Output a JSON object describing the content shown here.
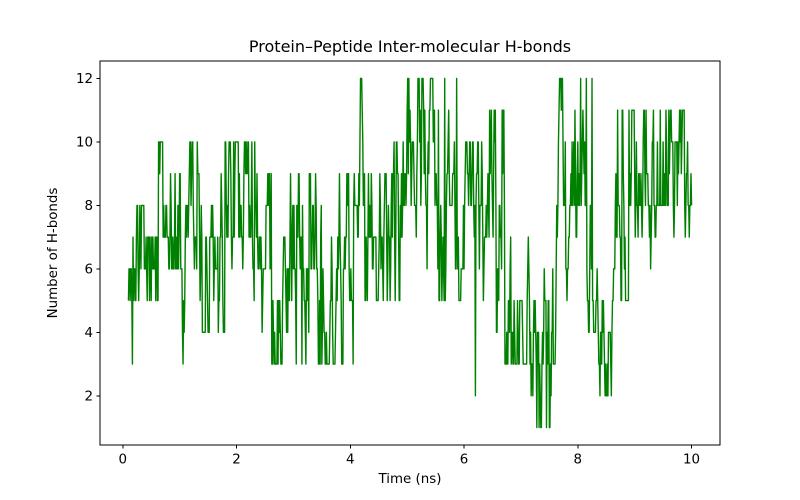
{
  "figure": {
    "background_color": "#ffffff"
  },
  "chart_data": {
    "type": "line",
    "title": "Protein–Peptide Inter-molecular H-bonds",
    "xlabel": "Time (ns)",
    "ylabel": "Number of H-bonds",
    "legend": null,
    "grid": false,
    "line_color": "#008000",
    "axis_color": "#000000",
    "text_color": "#000000",
    "xlim": [
      -0.4,
      10.5
    ],
    "ylim": [
      0.45,
      12.55
    ],
    "xticks": [
      0,
      2,
      4,
      6,
      8,
      10
    ],
    "yticks": [
      2,
      4,
      6,
      8,
      10,
      12
    ],
    "x_start": 0.1,
    "x_end": 10.0,
    "x_step": 0.01,
    "y_values_are_integers": true,
    "y_min_observed": 1,
    "y_max_observed": 12,
    "seed": 1337,
    "start_value": 6,
    "envelope": [
      {
        "t0": 0.1,
        "t1": 0.6,
        "min": 3,
        "max": 8,
        "center": 5.5
      },
      {
        "t0": 0.6,
        "t1": 0.8,
        "min": 5,
        "max": 10,
        "center": 7.5
      },
      {
        "t0": 0.8,
        "t1": 1.1,
        "min": 3,
        "max": 9,
        "center": 6
      },
      {
        "t0": 1.1,
        "t1": 1.55,
        "min": 4,
        "max": 10,
        "center": 7.5
      },
      {
        "t0": 1.55,
        "t1": 2.45,
        "min": 4,
        "max": 10,
        "center": 7
      },
      {
        "t0": 2.45,
        "t1": 3.1,
        "min": 3,
        "max": 9,
        "center": 6
      },
      {
        "t0": 3.1,
        "t1": 4.0,
        "min": 3,
        "max": 9,
        "center": 6
      },
      {
        "t0": 4.0,
        "t1": 4.3,
        "min": 5,
        "max": 12,
        "center": 8
      },
      {
        "t0": 4.3,
        "t1": 4.85,
        "min": 5,
        "max": 10,
        "center": 7.5
      },
      {
        "t0": 4.85,
        "t1": 5.95,
        "min": 5,
        "max": 12,
        "center": 8.5
      },
      {
        "t0": 5.95,
        "t1": 6.3,
        "min": 2,
        "max": 10,
        "center": 6
      },
      {
        "t0": 6.3,
        "t1": 6.7,
        "min": 4,
        "max": 11,
        "center": 7.5
      },
      {
        "t0": 6.7,
        "t1": 7.15,
        "min": 3,
        "max": 8,
        "center": 5
      },
      {
        "t0": 7.15,
        "t1": 7.6,
        "min": 1,
        "max": 6,
        "center": 3.5
      },
      {
        "t0": 7.6,
        "t1": 8.32,
        "min": 4,
        "max": 12,
        "center": 8
      },
      {
        "t0": 8.32,
        "t1": 8.6,
        "min": 2,
        "max": 9,
        "center": 5.5
      },
      {
        "t0": 8.6,
        "t1": 9.0,
        "min": 5,
        "max": 11,
        "center": 8
      },
      {
        "t0": 9.0,
        "t1": 9.4,
        "min": 4,
        "max": 11,
        "center": 7
      },
      {
        "t0": 9.4,
        "t1": 10.0,
        "min": 5,
        "max": 11,
        "center": 8
      }
    ],
    "notable_points": [
      [
        0.17,
        3
      ],
      [
        0.63,
        10
      ],
      [
        0.7,
        10
      ],
      [
        1.06,
        3
      ],
      [
        1.22,
        10
      ],
      [
        1.31,
        10
      ],
      [
        1.95,
        10
      ],
      [
        2.32,
        10
      ],
      [
        3.05,
        3
      ],
      [
        3.15,
        3
      ],
      [
        3.47,
        3
      ],
      [
        4.05,
        3
      ],
      [
        4.2,
        12
      ],
      [
        5.0,
        11
      ],
      [
        5.31,
        11
      ],
      [
        5.55,
        11
      ],
      [
        5.66,
        12
      ],
      [
        5.87,
        12
      ],
      [
        6.2,
        2
      ],
      [
        6.45,
        11
      ],
      [
        6.55,
        11
      ],
      [
        7.32,
        1
      ],
      [
        7.45,
        1
      ],
      [
        7.78,
        10
      ],
      [
        7.95,
        11
      ],
      [
        8.05,
        12
      ],
      [
        8.15,
        12
      ],
      [
        8.25,
        12
      ],
      [
        8.42,
        3
      ],
      [
        8.53,
        2
      ],
      [
        8.7,
        11
      ],
      [
        8.9,
        11
      ],
      [
        9.2,
        11
      ],
      [
        9.55,
        11
      ],
      [
        9.85,
        11
      ]
    ]
  }
}
